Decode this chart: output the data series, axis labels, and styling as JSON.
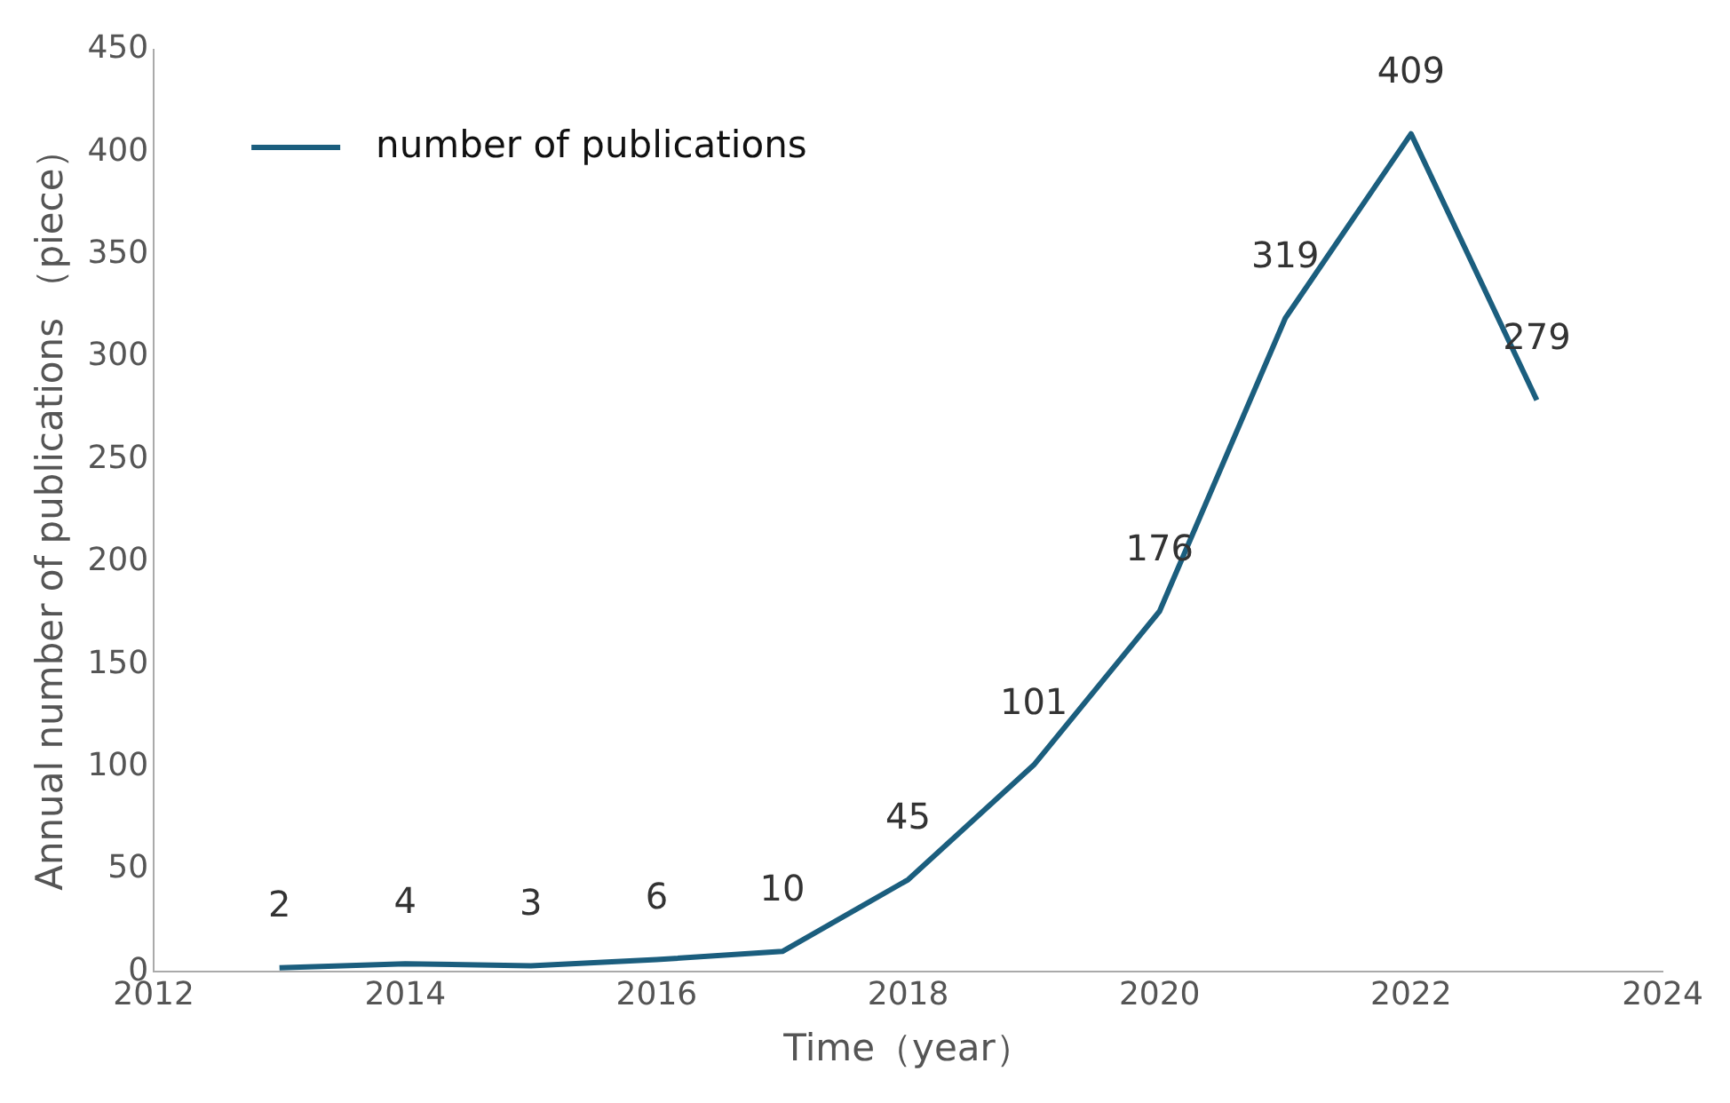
{
  "chart_data": {
    "type": "line",
    "xlabel": "Time（year）",
    "ylabel": "Annual number of publications （piece）",
    "x": [
      2013,
      2014,
      2015,
      2016,
      2017,
      2018,
      2019,
      2020,
      2021,
      2022,
      2023
    ],
    "series": [
      {
        "name": "number of publications",
        "color": "#1b5e7e",
        "values": [
          2,
          4,
          3,
          6,
          10,
          45,
          101,
          176,
          319,
          409,
          279
        ]
      }
    ],
    "xlim": [
      2012,
      2024
    ],
    "xticks": [
      2012,
      2014,
      2016,
      2018,
      2020,
      2022,
      2024
    ],
    "ylim": [
      0,
      450
    ],
    "yticks": [
      0,
      50,
      100,
      150,
      200,
      250,
      300,
      350,
      400,
      450
    ],
    "grid": false,
    "legend": "top left",
    "marker": "none",
    "line_style": "solid",
    "data_labels": true
  }
}
